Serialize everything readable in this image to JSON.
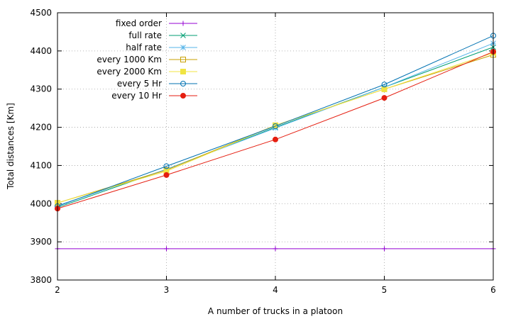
{
  "chart_data": {
    "type": "line",
    "title": "",
    "xlabel": "A number of trucks in a platoon",
    "ylabel": "Total distances [Km]",
    "xlim": [
      2,
      6
    ],
    "ylim": [
      3800,
      4500
    ],
    "xticks": [
      2,
      3,
      4,
      5,
      6
    ],
    "yticks": [
      3800,
      3900,
      4000,
      4100,
      4200,
      4300,
      4400,
      4500
    ],
    "grid": true,
    "legend_position": "top-left",
    "x": [
      2,
      3,
      4,
      5,
      6
    ],
    "series": [
      {
        "name": "fixed order",
        "color": "#9400d3",
        "marker": "plus",
        "values": [
          3882,
          3882,
          3882,
          3882,
          3882
        ]
      },
      {
        "name": "full rate",
        "color": "#009e73",
        "marker": "cross",
        "values": [
          3990,
          4090,
          4200,
          4305,
          4410
        ]
      },
      {
        "name": "half rate",
        "color": "#56b4e9",
        "marker": "star",
        "values": [
          3995,
          4090,
          4198,
          4305,
          4420
        ]
      },
      {
        "name": "every 1000 Km",
        "color": "#c8a000",
        "marker": "square-open",
        "values": [
          4002,
          4088,
          4205,
          4300,
          4390
        ]
      },
      {
        "name": "every 2000 Km",
        "color": "#f0e442",
        "marker": "square-filled",
        "values": [
          4002,
          4085,
          4205,
          4300,
          4395
        ]
      },
      {
        "name": "every 5 Hr",
        "color": "#0072b2",
        "marker": "circle-open",
        "values": [
          3993,
          4098,
          4203,
          4312,
          4440
        ]
      },
      {
        "name": "every 10 Hr",
        "color": "#e51e10",
        "marker": "circle-filled",
        "values": [
          3987,
          4075,
          4168,
          4277,
          4398
        ]
      }
    ]
  }
}
